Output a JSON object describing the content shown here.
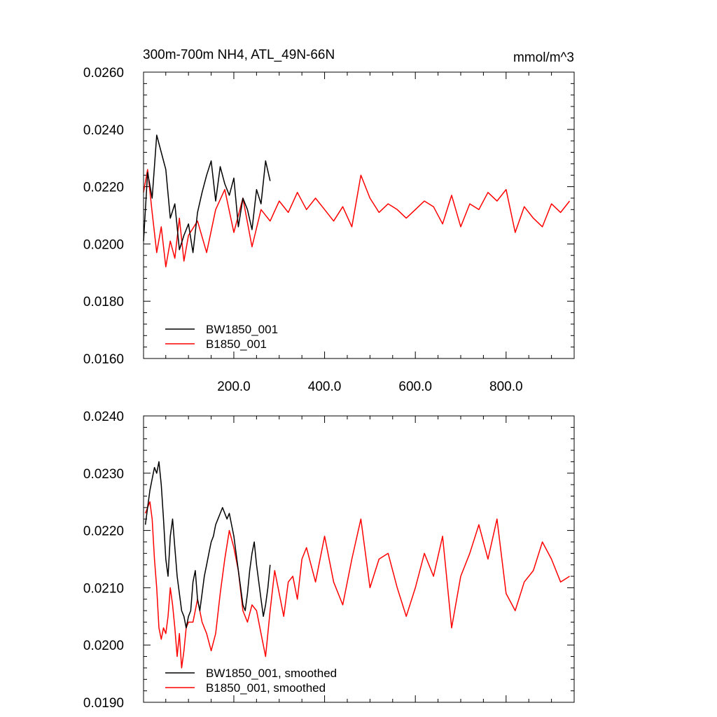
{
  "chart_data": [
    {
      "type": "line",
      "title": "300m-700m NH4, ATL_49N-66N",
      "units": "mmol/m^3",
      "xlim": [
        1,
        950
      ],
      "ylim": [
        0.016,
        0.026
      ],
      "xticks": [
        200,
        400,
        600,
        800
      ],
      "xtick_labels": [
        "200.0",
        "400.0",
        "600.0",
        "800.0"
      ],
      "yticks": [
        0.016,
        0.018,
        0.02,
        0.022,
        0.024,
        0.026
      ],
      "ytick_labels": [
        "0.0160",
        "0.0180",
        "0.0200",
        "0.0220",
        "0.0240",
        "0.0260"
      ],
      "legend_position": "bottom-left",
      "series": [
        {
          "name": "BW1850_001",
          "color": "#000000",
          "x": [
            1,
            10,
            20,
            30,
            40,
            50,
            60,
            70,
            80,
            90,
            100,
            110,
            120,
            130,
            140,
            150,
            160,
            170,
            180,
            190,
            200,
            210,
            220,
            230,
            240,
            250,
            260,
            270,
            280
          ],
          "y": [
            0.0201,
            0.0225,
            0.0216,
            0.0238,
            0.0232,
            0.0226,
            0.0209,
            0.0214,
            0.0198,
            0.0203,
            0.0207,
            0.0197,
            0.0211,
            0.0218,
            0.0224,
            0.0229,
            0.0215,
            0.0227,
            0.0221,
            0.0217,
            0.0223,
            0.0206,
            0.0216,
            0.0212,
            0.0205,
            0.0219,
            0.0214,
            0.0229,
            0.0222
          ]
        },
        {
          "name": "B1850_001",
          "color": "#ff0000",
          "x": [
            1,
            10,
            20,
            30,
            40,
            50,
            60,
            70,
            80,
            90,
            100,
            120,
            140,
            160,
            180,
            200,
            220,
            240,
            260,
            280,
            300,
            320,
            340,
            360,
            380,
            400,
            420,
            440,
            460,
            480,
            500,
            520,
            540,
            560,
            580,
            600,
            620,
            640,
            660,
            680,
            700,
            720,
            740,
            760,
            780,
            800,
            820,
            840,
            860,
            880,
            900,
            920,
            940
          ],
          "y": [
            0.0218,
            0.0226,
            0.0211,
            0.0197,
            0.0206,
            0.0192,
            0.0201,
            0.0195,
            0.0209,
            0.0194,
            0.0203,
            0.0208,
            0.0197,
            0.0212,
            0.0219,
            0.0204,
            0.0216,
            0.0199,
            0.0212,
            0.0208,
            0.0215,
            0.0211,
            0.0218,
            0.0212,
            0.0216,
            0.0212,
            0.0208,
            0.0213,
            0.0206,
            0.0224,
            0.0216,
            0.0211,
            0.0214,
            0.0212,
            0.0209,
            0.0212,
            0.0215,
            0.0213,
            0.0207,
            0.0217,
            0.0206,
            0.0214,
            0.0212,
            0.0218,
            0.0215,
            0.0219,
            0.0204,
            0.0213,
            0.0209,
            0.0206,
            0.0214,
            0.0211,
            0.0215
          ]
        }
      ]
    },
    {
      "type": "line",
      "xlim": [
        1,
        950
      ],
      "ylim": [
        0.019,
        0.024
      ],
      "yticks": [
        0.019,
        0.02,
        0.021,
        0.022,
        0.023,
        0.024
      ],
      "ytick_labels": [
        "0.0190",
        "0.0200",
        "0.0210",
        "0.0220",
        "0.0230",
        "0.0240"
      ],
      "legend_position": "bottom-left",
      "series": [
        {
          "name": "BW1850_001, smoothed",
          "color": "#000000",
          "x": [
            5,
            10,
            15,
            20,
            25,
            30,
            35,
            40,
            45,
            50,
            55,
            60,
            65,
            70,
            75,
            80,
            85,
            90,
            95,
            100,
            105,
            110,
            115,
            120,
            125,
            130,
            135,
            140,
            145,
            150,
            155,
            160,
            165,
            170,
            175,
            180,
            185,
            190,
            195,
            200,
            205,
            210,
            215,
            220,
            225,
            230,
            235,
            240,
            245,
            250,
            255,
            260,
            265,
            270,
            275,
            280
          ],
          "y": [
            0.0221,
            0.0224,
            0.0227,
            0.0229,
            0.0231,
            0.023,
            0.0232,
            0.0228,
            0.0222,
            0.0215,
            0.0212,
            0.0219,
            0.0222,
            0.0217,
            0.0212,
            0.0209,
            0.0206,
            0.0205,
            0.0203,
            0.0205,
            0.0206,
            0.0211,
            0.0213,
            0.0208,
            0.0206,
            0.0209,
            0.0212,
            0.0214,
            0.0216,
            0.0218,
            0.0219,
            0.0221,
            0.0222,
            0.0223,
            0.0224,
            0.0223,
            0.0222,
            0.0223,
            0.0221,
            0.0219,
            0.0216,
            0.0213,
            0.021,
            0.0207,
            0.0206,
            0.0209,
            0.0213,
            0.0216,
            0.0218,
            0.0214,
            0.0211,
            0.0208,
            0.0205,
            0.0207,
            0.021,
            0.0214
          ]
        },
        {
          "name": "B1850_001, smoothed",
          "color": "#ff0000",
          "x": [
            5,
            10,
            15,
            20,
            25,
            30,
            35,
            40,
            45,
            50,
            55,
            60,
            65,
            70,
            75,
            80,
            85,
            90,
            95,
            100,
            110,
            120,
            130,
            140,
            150,
            160,
            170,
            180,
            190,
            200,
            210,
            220,
            230,
            240,
            250,
            260,
            270,
            280,
            290,
            300,
            310,
            320,
            330,
            340,
            350,
            360,
            380,
            400,
            420,
            440,
            460,
            480,
            500,
            520,
            540,
            560,
            580,
            600,
            620,
            640,
            660,
            680,
            700,
            720,
            740,
            760,
            780,
            800,
            820,
            840,
            860,
            880,
            900,
            920,
            940
          ],
          "y": [
            0.0223,
            0.0224,
            0.0225,
            0.0222,
            0.0215,
            0.021,
            0.0203,
            0.0201,
            0.0203,
            0.0202,
            0.0205,
            0.021,
            0.0207,
            0.0203,
            0.0198,
            0.0202,
            0.0196,
            0.0199,
            0.0203,
            0.0204,
            0.0204,
            0.0208,
            0.0204,
            0.0202,
            0.0199,
            0.0202,
            0.0209,
            0.0215,
            0.022,
            0.0217,
            0.0213,
            0.0206,
            0.0204,
            0.0207,
            0.0206,
            0.0202,
            0.0198,
            0.0206,
            0.0213,
            0.0209,
            0.0205,
            0.0211,
            0.0212,
            0.0208,
            0.0215,
            0.0217,
            0.0211,
            0.0219,
            0.0211,
            0.0207,
            0.0215,
            0.0222,
            0.021,
            0.0215,
            0.0216,
            0.021,
            0.0205,
            0.021,
            0.0216,
            0.0212,
            0.0219,
            0.0203,
            0.0212,
            0.0216,
            0.0221,
            0.0215,
            0.0222,
            0.0209,
            0.0206,
            0.0211,
            0.0213,
            0.0218,
            0.0215,
            0.0211,
            0.0212
          ]
        }
      ]
    }
  ]
}
